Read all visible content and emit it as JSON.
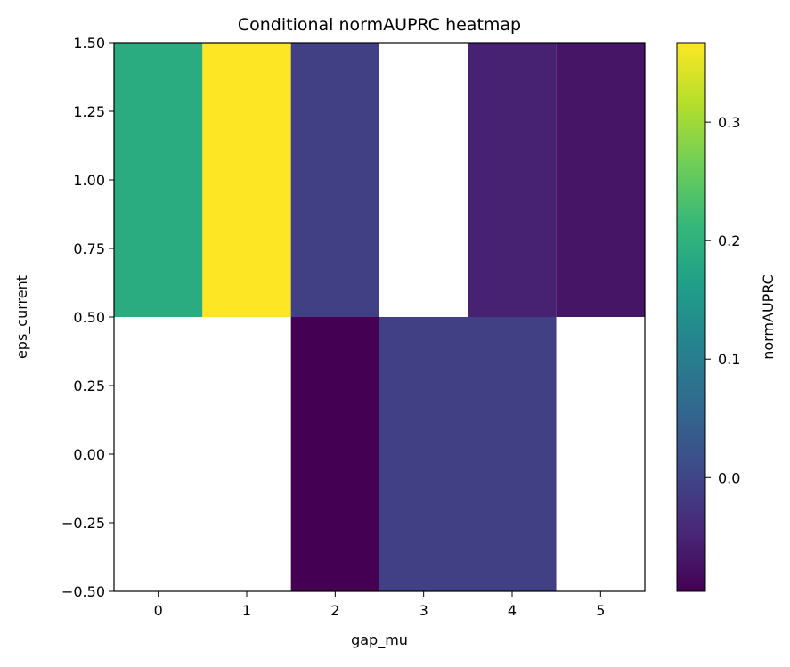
{
  "chart_data": {
    "type": "heatmap",
    "title": "Conditional normAUPRC heatmap",
    "xlabel": "gap_mu",
    "ylabel": "eps_current",
    "colorbar_label": "normAUPRC",
    "colormap": "viridis",
    "x_values": [
      0,
      1,
      2,
      3,
      4,
      5
    ],
    "xlim": [
      -0.5,
      5.5
    ],
    "y_rows": [
      {
        "y_range": [
          0.5,
          1.5
        ],
        "values": [
          0.19,
          0.367,
          -0.008,
          null,
          -0.052,
          -0.07
        ]
      },
      {
        "y_range": [
          -0.5,
          0.5
        ],
        "values": [
          null,
          null,
          -0.096,
          -0.008,
          -0.008,
          null
        ]
      }
    ],
    "ylim": [
      -0.5,
      1.5
    ],
    "x_ticks": [
      "0",
      "1",
      "2",
      "3",
      "4",
      "5"
    ],
    "y_ticks": [
      {
        "value": 1.5,
        "label": "1.50"
      },
      {
        "value": 1.25,
        "label": "1.25"
      },
      {
        "value": 1.0,
        "label": "1.00"
      },
      {
        "value": 0.75,
        "label": "0.75"
      },
      {
        "value": 0.5,
        "label": "0.50"
      },
      {
        "value": 0.25,
        "label": "0.25"
      },
      {
        "value": 0.0,
        "label": "0.00"
      },
      {
        "value": -0.25,
        "label": "−0.25"
      },
      {
        "value": -0.5,
        "label": "−0.50"
      }
    ],
    "color_range": [
      -0.096,
      0.367
    ],
    "colorbar_ticks": [
      {
        "value": 0.0,
        "label": "0.0"
      },
      {
        "value": 0.1,
        "label": "0.1"
      },
      {
        "value": 0.2,
        "label": "0.2"
      },
      {
        "value": 0.3,
        "label": "0.3"
      }
    ],
    "missing_color": "#ffffff"
  }
}
